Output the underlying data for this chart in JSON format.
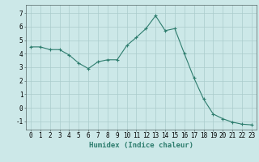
{
  "x": [
    0,
    1,
    2,
    3,
    4,
    5,
    6,
    7,
    8,
    9,
    10,
    11,
    12,
    13,
    14,
    15,
    16,
    17,
    18,
    19,
    20,
    21,
    22,
    23
  ],
  "y": [
    4.5,
    4.5,
    4.3,
    4.3,
    3.9,
    3.3,
    2.9,
    3.4,
    3.55,
    3.55,
    4.6,
    5.2,
    5.85,
    6.8,
    5.7,
    5.85,
    4.0,
    2.2,
    0.65,
    -0.45,
    -0.8,
    -1.05,
    -1.2,
    -1.25
  ],
  "line_color": "#2e7d6e",
  "marker": "+",
  "marker_size": 3,
  "bg_color": "#cce8e8",
  "grid_color": "#aacccc",
  "xlabel": "Humidex (Indice chaleur)",
  "xlim": [
    -0.5,
    23.5
  ],
  "ylim": [
    -1.6,
    7.6
  ],
  "yticks": [
    -1,
    0,
    1,
    2,
    3,
    4,
    5,
    6,
    7
  ],
  "xticks": [
    0,
    1,
    2,
    3,
    4,
    5,
    6,
    7,
    8,
    9,
    10,
    11,
    12,
    13,
    14,
    15,
    16,
    17,
    18,
    19,
    20,
    21,
    22,
    23
  ],
  "tick_fontsize": 5.5,
  "xlabel_fontsize": 6.5
}
